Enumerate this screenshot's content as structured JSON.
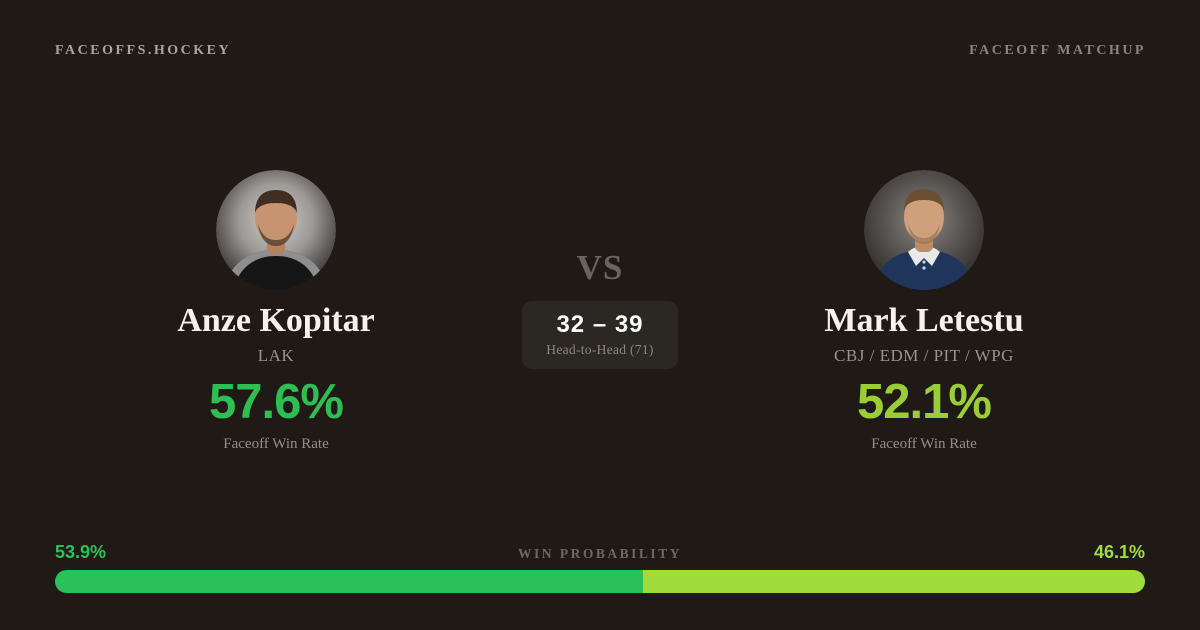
{
  "header": {
    "brand": "FACEOFFS.HOCKEY",
    "page_label": "FACEOFF MATCHUP"
  },
  "center": {
    "vs_label": "VS",
    "head_to_head_score": "32 – 39",
    "head_to_head_label": "Head-to-Head (71)"
  },
  "players": {
    "left": {
      "name": "Anze Kopitar",
      "teams": "LAK",
      "win_rate": "57.6%",
      "win_rate_label": "Faceoff Win Rate",
      "accent_color": "#2EBE54",
      "win_probability": "53.9%",
      "win_probability_pct": 53.9,
      "avatar": "anze-kopitar-headshot"
    },
    "right": {
      "name": "Mark Letestu",
      "teams": "CBJ / EDM / PIT / WPG",
      "win_rate": "52.1%",
      "win_rate_label": "Faceoff Win Rate",
      "accent_color": "#9ACD36",
      "win_probability": "46.1%",
      "win_probability_pct": 46.1,
      "avatar": "mark-letestu-headshot"
    }
  },
  "win_probability": {
    "label": "WIN PROBABILITY",
    "left_pct": 53.9,
    "right_pct": 46.1,
    "left_color": "#2AC159",
    "right_color": "#9FDC3C"
  },
  "colors": {
    "background": "#1F1A16",
    "panel": "#2B2723",
    "text_primary": "#F6F2ED",
    "text_muted": "#968E87"
  }
}
